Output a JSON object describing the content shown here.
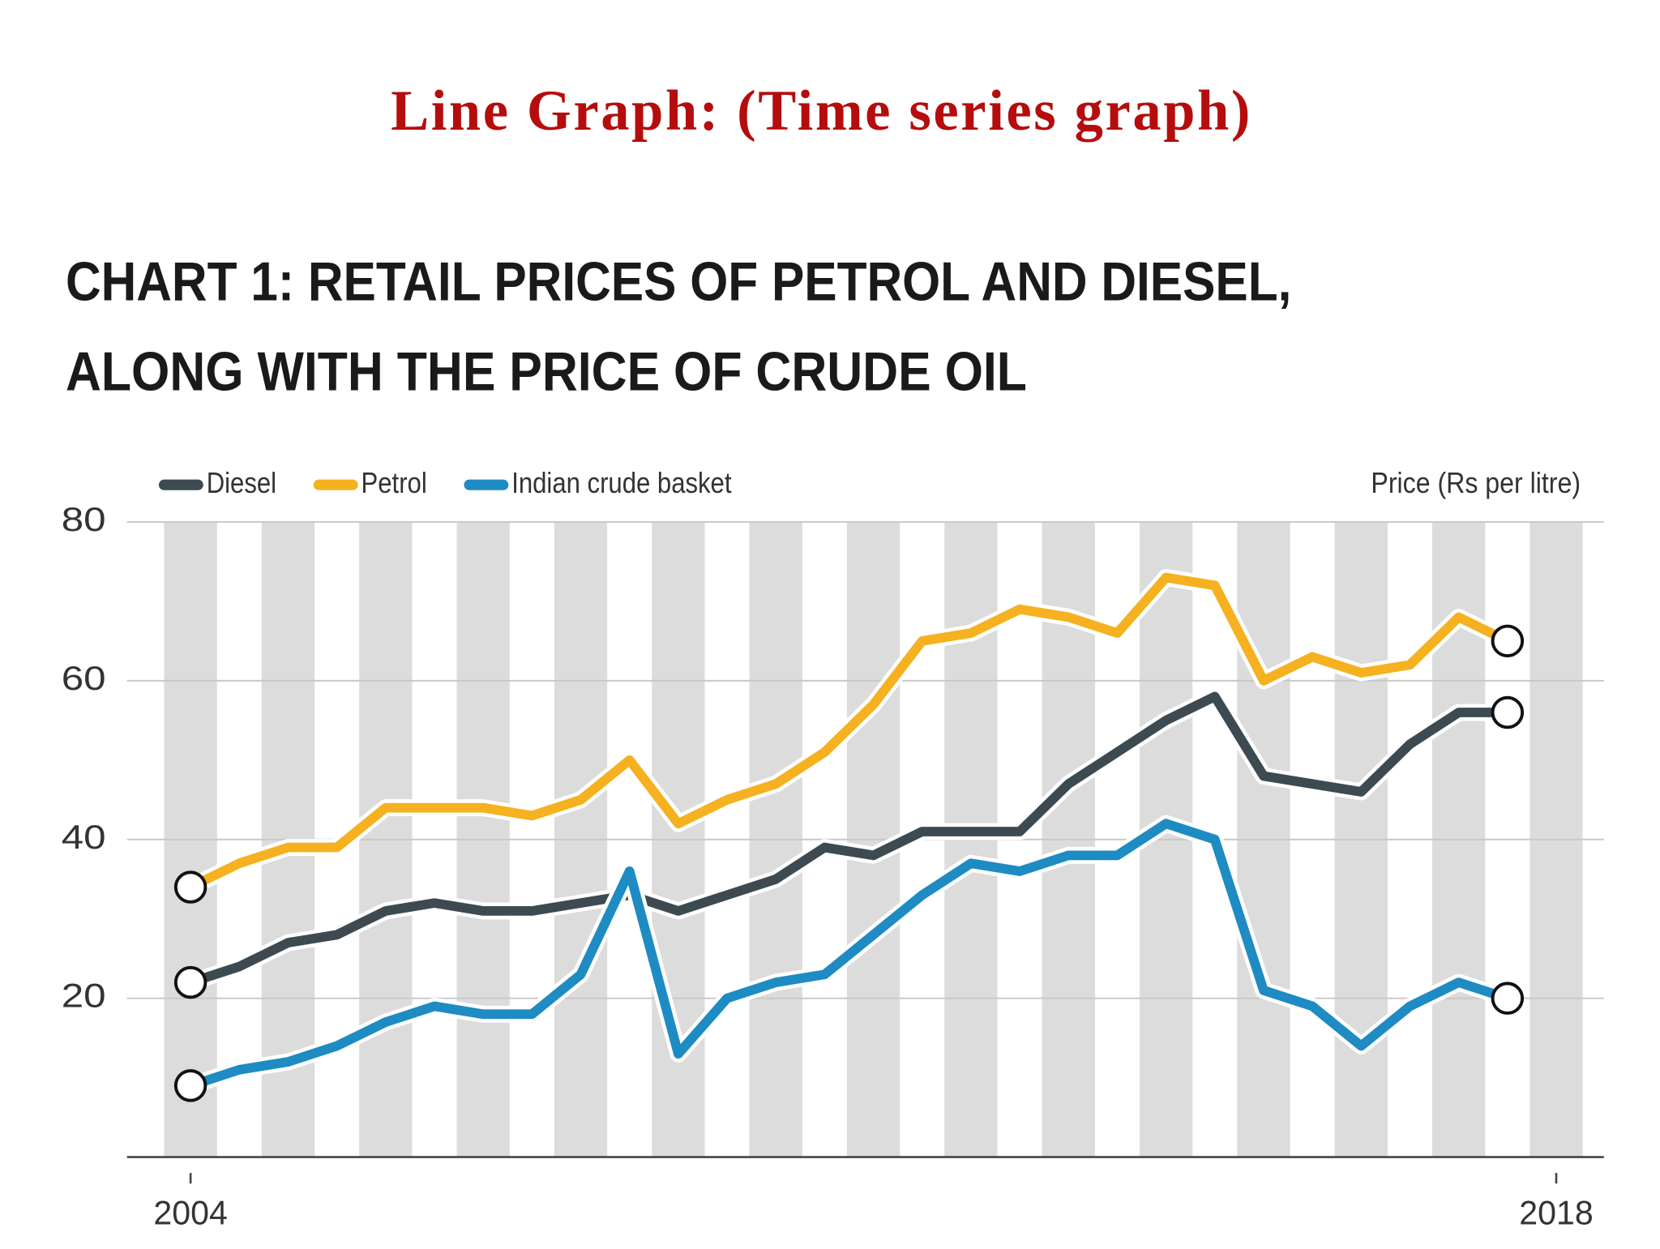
{
  "slide_title": "Line Graph: (Time series graph)",
  "chart_data": {
    "type": "line",
    "title": [
      "CHART 1: RETAIL PRICES OF PETROL AND DIESEL,",
      "ALONG WITH THE PRICE OF CRUDE OIL"
    ],
    "y_label": "Price (Rs per litre)",
    "x": [
      2004,
      2004.5,
      2005,
      2005.5,
      2006,
      2006.5,
      2007,
      2007.5,
      2008,
      2008.5,
      2009,
      2009.5,
      2010,
      2010.5,
      2011,
      2011.5,
      2012,
      2012.5,
      2013,
      2013.5,
      2014,
      2014.5,
      2015,
      2015.5,
      2016,
      2016.5,
      2017,
      2017.5
    ],
    "series": [
      {
        "name": "Diesel",
        "color": "#3d4a52",
        "values": [
          22,
          24,
          27,
          28,
          31,
          32,
          31,
          31,
          32,
          33,
          31,
          33,
          35,
          39,
          38,
          41,
          41,
          41,
          47,
          51,
          55,
          58,
          48,
          47,
          46,
          52,
          56,
          56
        ]
      },
      {
        "name": "Petrol",
        "color": "#f5b120",
        "values": [
          34,
          37,
          39,
          39,
          44,
          44,
          44,
          43,
          45,
          50,
          42,
          45,
          47,
          51,
          57,
          65,
          66,
          69,
          68,
          66,
          73,
          72,
          60,
          63,
          61,
          62,
          68,
          65
        ]
      },
      {
        "name": "Indian crude basket",
        "color": "#1e8bc3",
        "values": [
          9,
          11,
          12,
          14,
          17,
          19,
          18,
          18,
          23,
          36,
          13,
          20,
          22,
          23,
          28,
          33,
          37,
          36,
          38,
          38,
          42,
          40,
          21,
          19,
          14,
          19,
          22,
          20
        ]
      }
    ],
    "xlim": [
      2004,
      2018
    ],
    "xticks": [
      2004,
      2018
    ],
    "ylim": [
      0,
      80
    ],
    "yticks": [
      20,
      40,
      60,
      80
    ],
    "grid": true,
    "legend": "top-left"
  }
}
